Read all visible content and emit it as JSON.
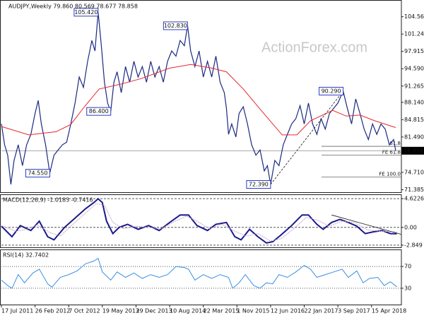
{
  "chart_data": [
    {
      "type": "line",
      "title": "AUDJPY,Weekly  79.860 80.569 78.677 78.858",
      "watermark": "ActionForex.com",
      "xlim": [
        0,
        380.4
      ],
      "ylim": [
        70.9,
        107.5
      ],
      "yticks": [
        104.565,
        {
          "value": 101.24,
          "label": "101.240"
        },
        97.915,
        {
          "value": 94.59,
          "label": "94.590"
        },
        91.265,
        {
          "value": 88.14,
          "label": "88.140"
        },
        84.815,
        {
          "value": 81.49,
          "label": "81.490"
        },
        {
          "value": 74.71,
          "label": "74.710"
        },
        71.385
      ],
      "last_price": 78.858,
      "series": [
        {
          "name": "AUDJPY",
          "color": "#1b2a80",
          "x": [
            0,
            3,
            6,
            9,
            12,
            16,
            20,
            24,
            28,
            32,
            35,
            38,
            42,
            46,
            50,
            54,
            58,
            62,
            66,
            70,
            74,
            78,
            82,
            86,
            89,
            92,
            95,
            98,
            101,
            104,
            107,
            110,
            114,
            118,
            122,
            126,
            130,
            134,
            138,
            142,
            146,
            150,
            154,
            158,
            162,
            166,
            170,
            174,
            177,
            180,
            184,
            188,
            192,
            196,
            200,
            204,
            208,
            212,
            214,
            216,
            219,
            223,
            226,
            230,
            234,
            238,
            242,
            246,
            250,
            253,
            256,
            260,
            264,
            268,
            272,
            276,
            280,
            284,
            288,
            292,
            296,
            300,
            304,
            308,
            312,
            316,
            320,
            325,
            329,
            333,
            337,
            341,
            345,
            349,
            353,
            357,
            361,
            365,
            369,
            373,
            375
          ],
          "values": [
            84,
            80,
            78,
            72.4,
            77,
            80,
            76,
            80,
            82,
            86,
            88.5,
            84,
            80,
            74.55,
            78,
            79,
            80,
            80.5,
            84,
            88,
            93,
            91,
            96,
            100,
            98,
            105.42,
            99,
            92,
            88,
            86.4,
            92,
            94,
            90,
            95,
            92,
            96,
            93,
            95,
            92,
            96,
            93,
            95,
            92,
            96,
            98,
            97,
            100,
            99,
            102.83,
            98,
            95,
            98,
            93,
            96,
            93,
            97,
            92,
            90,
            87,
            82,
            84,
            81.5,
            86,
            87.3,
            84,
            80,
            78,
            79,
            75,
            76,
            72.39,
            77,
            76,
            80,
            82,
            84,
            85,
            87.5,
            84,
            88,
            84,
            82,
            85,
            83,
            86,
            87,
            88,
            90.29,
            87,
            84,
            88.8,
            86,
            83,
            81,
            84,
            82,
            84,
            83,
            80,
            81,
            78.858
          ]
        },
        {
          "name": "MA",
          "color": "#e8262b",
          "x": [
            0,
            26,
            52,
            66,
            79,
            93,
            113,
            133,
            160,
            180,
            200,
            214,
            230,
            247,
            267,
            281,
            294,
            315,
            328,
            341,
            355,
            375
          ],
          "values": [
            83.5,
            81.9,
            82.5,
            83.9,
            87.3,
            90.7,
            91.6,
            92.7,
            94.7,
            95.4,
            94.7,
            94.0,
            90.7,
            86.6,
            81.9,
            81.9,
            84.6,
            86.6,
            85.5,
            85.7,
            84.6,
            83.3
          ]
        }
      ],
      "annotations": [
        {
          "x": 92,
          "value": 105.42,
          "label": "105.420"
        },
        {
          "x": 177,
          "value": 102.83,
          "label": "102.830"
        },
        {
          "x": 104,
          "value": 86.4,
          "label": "86.400"
        },
        {
          "x": 46,
          "value": 74.55,
          "label": "74.550"
        },
        {
          "x": 256,
          "value": 72.39,
          "label": "72.390"
        },
        {
          "x": 325,
          "value": 90.29,
          "label": "90.290"
        }
      ],
      "trendline": {
        "x": [
          256,
          325
        ],
        "values": [
          72.39,
          90.29
        ]
      },
      "levels": [
        {
          "value": 79.7,
          "label": "61.8"
        },
        {
          "value": 78.0,
          "label": "FE 61.8"
        },
        {
          "value": 73.8,
          "label": "FE 100.0"
        }
      ]
    },
    {
      "type": "line",
      "title": "MACD(12,26,9) -1.0183 -0.7416",
      "xlim": [
        0,
        380.4
      ],
      "ylim": [
        -3.2,
        5.2
      ],
      "yticks": [
        4.6226,
        {
          "value": 0,
          "label": "0.00"
        },
        -2.849
      ],
      "series": [
        {
          "name": "MACD",
          "color": "#1a1a8c",
          "x": [
            0,
            10,
            18,
            28,
            36,
            44,
            50,
            60,
            70,
            80,
            88,
            92,
            96,
            100,
            106,
            112,
            120,
            130,
            140,
            150,
            160,
            170,
            178,
            186,
            196,
            204,
            214,
            222,
            228,
            236,
            244,
            252,
            258,
            266,
            276,
            286,
            292,
            300,
            306,
            314,
            322,
            330,
            338,
            346,
            354,
            362,
            370,
            376
          ],
          "values": [
            0.2,
            -1.5,
            0.3,
            -0.5,
            1.0,
            -1.5,
            -2.0,
            0,
            1.5,
            3.0,
            4.0,
            4.6,
            4.0,
            1.0,
            -1.0,
            0,
            0.5,
            -0.3,
            0.3,
            -0.5,
            0.8,
            2.0,
            2.0,
            0.3,
            -0.5,
            0.5,
            0.8,
            -1.5,
            -2.0,
            -0.3,
            -1.5,
            -2.5,
            -2.3,
            -1.2,
            0.3,
            2.0,
            2.0,
            0.5,
            -0.3,
            0.8,
            1.3,
            0.8,
            0.2,
            -1.0,
            -0.7,
            -0.5,
            -1.0,
            -1.0183
          ]
        },
        {
          "name": "Signal",
          "color": "#c8a2c8",
          "x": [
            0,
            14,
            24,
            34,
            46,
            56,
            66,
            78,
            90,
            98,
            106,
            116,
            128,
            140,
            152,
            164,
            176,
            186,
            198,
            210,
            222,
            232,
            244,
            256,
            266,
            278,
            290,
            300,
            312,
            324,
            336,
            348,
            360,
            376
          ],
          "values": [
            0.3,
            -0.6,
            -0.3,
            0.4,
            -0.8,
            -1.4,
            0.2,
            2.0,
            3.8,
            3.6,
            0.8,
            -0.2,
            0.2,
            0,
            -0.2,
            0.9,
            1.8,
            1.0,
            -0.2,
            0.5,
            -0.6,
            -1.4,
            -1.0,
            -2.2,
            -1.8,
            -0.2,
            1.6,
            1.2,
            0.2,
            1.0,
            0.8,
            -0.4,
            -0.6,
            -0.7416
          ]
        }
      ],
      "trendline": {
        "x": [
          314,
          380
        ],
        "values": [
          2.0,
          -1.1
        ]
      }
    },
    {
      "type": "line",
      "title": "RSI(14) 32.7402",
      "xlim": [
        0,
        380.4
      ],
      "ylim": [
        0,
        100
      ],
      "yticks": [
        70,
        30
      ],
      "xticks": [
        {
          "value": 0,
          "label": "17 Jul 2011"
        },
        {
          "value": 32,
          "label": "26 Feb 2012"
        },
        {
          "value": 64,
          "label": "7 Oct 2012"
        },
        {
          "value": 96,
          "label": "19 May 2013"
        },
        {
          "value": 128,
          "label": "29 Dec 2013"
        },
        {
          "value": 160,
          "label": "10 Aug 2014"
        },
        {
          "value": 192,
          "label": "22 Mar 2015"
        },
        {
          "value": 224,
          "label": "1 Nov 2015"
        },
        {
          "value": 256,
          "label": "12 Jun 2016"
        },
        {
          "value": 288,
          "label": "22 Jan 2017"
        },
        {
          "value": 320,
          "label": "3 Sep 2017"
        },
        {
          "value": 352,
          "label": "15 Apr 2018"
        }
      ],
      "series": [
        {
          "name": "RSI",
          "color": "#3a8ee0",
          "x": [
            0,
            6,
            10,
            16,
            22,
            30,
            36,
            44,
            48,
            56,
            64,
            72,
            80,
            88,
            92,
            96,
            104,
            110,
            118,
            126,
            134,
            142,
            150,
            158,
            166,
            174,
            178,
            184,
            192,
            200,
            208,
            216,
            220,
            226,
            232,
            240,
            246,
            252,
            258,
            264,
            272,
            280,
            288,
            294,
            300,
            308,
            316,
            324,
            330,
            338,
            344,
            350,
            358,
            364,
            370,
            376
          ],
          "values": [
            45,
            35,
            30,
            55,
            40,
            58,
            65,
            38,
            32,
            50,
            55,
            62,
            75,
            80,
            85,
            60,
            45,
            60,
            50,
            58,
            48,
            55,
            50,
            55,
            70,
            68,
            65,
            45,
            55,
            48,
            55,
            50,
            30,
            40,
            55,
            35,
            30,
            40,
            38,
            55,
            50,
            60,
            72,
            65,
            50,
            55,
            60,
            65,
            50,
            62,
            40,
            48,
            50,
            35,
            42,
            32.7402
          ]
        }
      ]
    }
  ]
}
